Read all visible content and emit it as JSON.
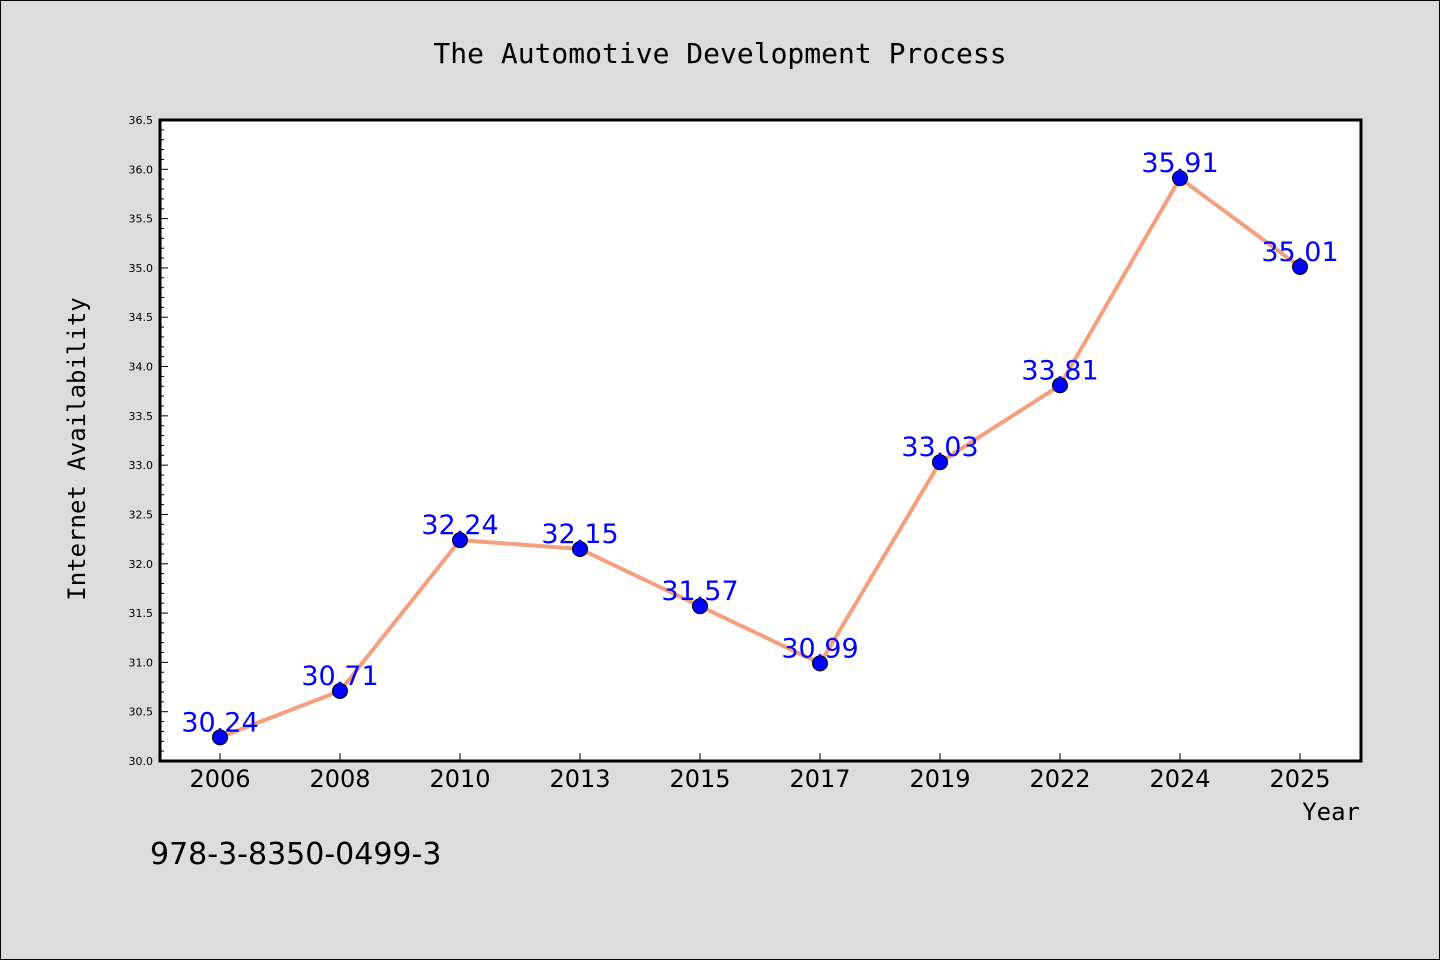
{
  "chart_data": {
    "type": "line",
    "title": "The Automotive Development Process",
    "xlabel": "Year",
    "ylabel": "Internet Availability",
    "categories": [
      "2006",
      "2008",
      "2010",
      "2013",
      "2015",
      "2017",
      "2019",
      "2022",
      "2024",
      "2025"
    ],
    "series": [
      {
        "values": [
          30.24,
          30.71,
          32.24,
          32.15,
          31.57,
          30.99,
          33.03,
          33.81,
          35.91,
          35.01
        ],
        "line_color": "#f4a07e",
        "marker_color": "#0000ff",
        "label_color": "#0000ff"
      }
    ],
    "ylim": [
      30.0,
      36.5
    ],
    "y_ticks": [
      "30.0",
      "30.5",
      "31.0",
      "31.5",
      "32.0",
      "32.5",
      "33.0",
      "33.5",
      "34.0",
      "34.5",
      "35.0",
      "35.5",
      "36.0",
      "36.5"
    ],
    "data_labels": [
      "30.24",
      "30.71",
      "32.24",
      "32.15",
      "31.57",
      "30.99",
      "33.03",
      "33.81",
      "35.91",
      "35.01"
    ],
    "grid": false,
    "legend": false
  },
  "footer": {
    "isbn": "978-3-8350-0499-3"
  },
  "colors": {
    "background": "#dcdcdc",
    "plot_background": "#ffffff",
    "axis": "#000000"
  }
}
